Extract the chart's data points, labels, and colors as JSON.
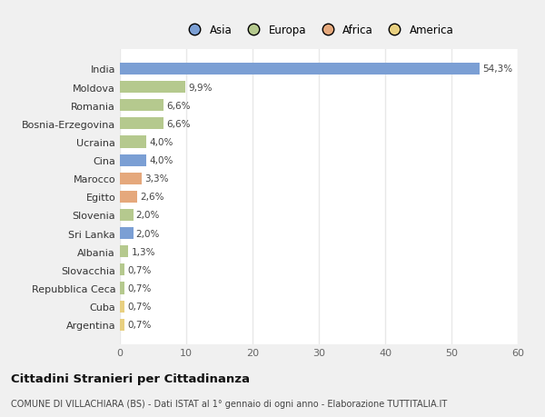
{
  "countries": [
    "India",
    "Moldova",
    "Romania",
    "Bosnia-Erzegovina",
    "Ucraina",
    "Cina",
    "Marocco",
    "Egitto",
    "Slovenia",
    "Sri Lanka",
    "Albania",
    "Slovacchia",
    "Repubblica Ceca",
    "Cuba",
    "Argentina"
  ],
  "values": [
    54.3,
    9.9,
    6.6,
    6.6,
    4.0,
    4.0,
    3.3,
    2.6,
    2.0,
    2.0,
    1.3,
    0.7,
    0.7,
    0.7,
    0.7
  ],
  "labels": [
    "54,3%",
    "9,9%",
    "6,6%",
    "6,6%",
    "4,0%",
    "4,0%",
    "3,3%",
    "2,6%",
    "2,0%",
    "2,0%",
    "1,3%",
    "0,7%",
    "0,7%",
    "0,7%",
    "0,7%"
  ],
  "colors": [
    "#7b9fd4",
    "#b5c98e",
    "#b5c98e",
    "#b5c98e",
    "#b5c98e",
    "#7b9fd4",
    "#e5a87c",
    "#e5a87c",
    "#b5c98e",
    "#7b9fd4",
    "#b5c98e",
    "#b5c98e",
    "#b5c98e",
    "#e8d080",
    "#e8d080"
  ],
  "legend_labels": [
    "Asia",
    "Europa",
    "Africa",
    "America"
  ],
  "legend_colors": [
    "#7b9fd4",
    "#b5c98e",
    "#e5a87c",
    "#e8d080"
  ],
  "title": "Cittadini Stranieri per Cittadinanza",
  "subtitle": "COMUNE DI VILLACHIARA (BS) - Dati ISTAT al 1° gennaio di ogni anno - Elaborazione TUTTITALIA.IT",
  "xlim": [
    0,
    60
  ],
  "xticks": [
    0,
    10,
    20,
    30,
    40,
    50,
    60
  ],
  "bg_color": "#f0f0f0",
  "bar_bg_color": "#ffffff",
  "grid_color": "#e8e8e8"
}
